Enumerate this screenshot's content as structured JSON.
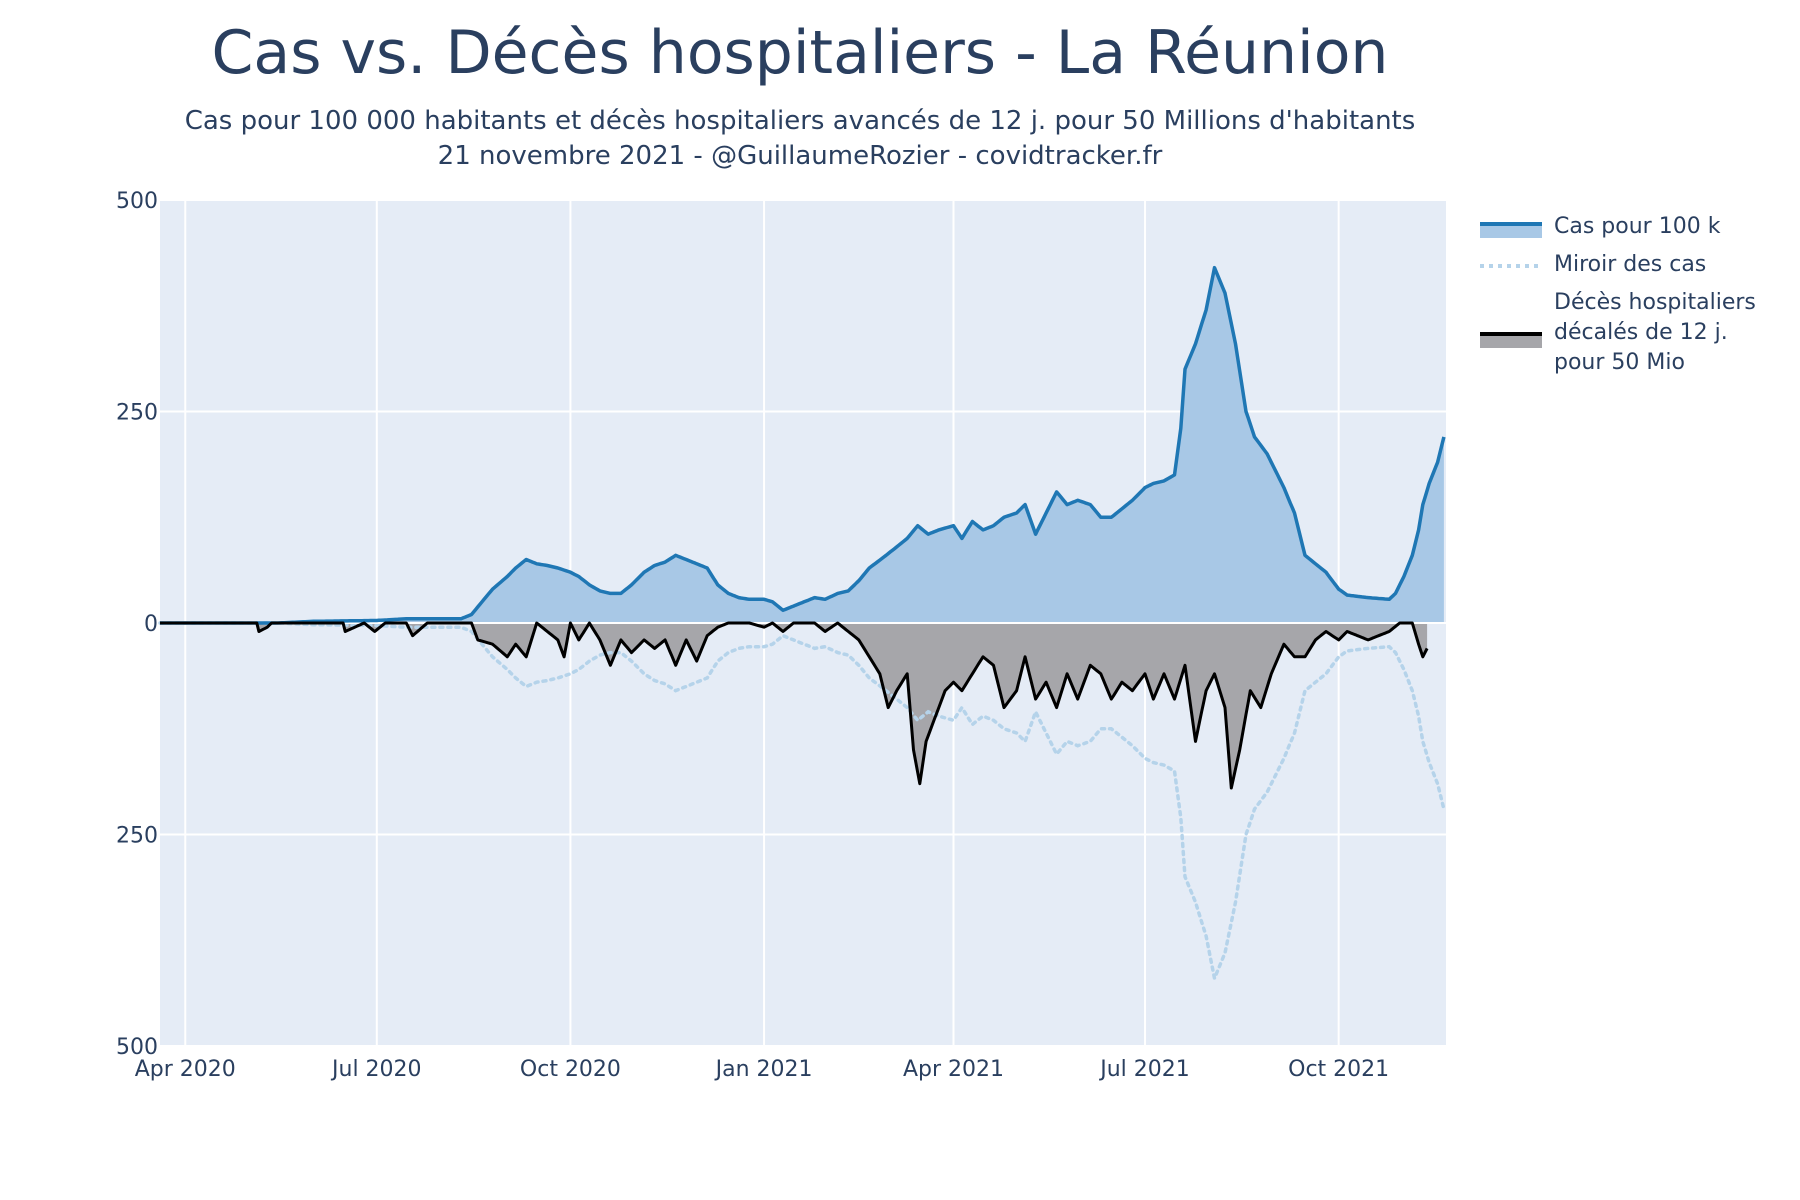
{
  "header": {
    "title": "Cas vs. Décès hospitaliers - La Réunion",
    "subtitle_line1": "Cas pour 100 000 habitants et décès hospitaliers avancés de 12 j. pour 50 Millions d'habitants",
    "subtitle_line2": "21 novembre 2021 - @GuillaumeRozier - covidtracker.fr"
  },
  "colors": {
    "cases_line": "#1f77b4",
    "cases_fill": "#a8c8e6",
    "mirror_line": "#b5d3ea",
    "deaths_line": "#000000",
    "deaths_fill": "#a6a6aa",
    "plot_bg": "#e5ecf6",
    "grid": "#ffffff"
  },
  "chart_data": {
    "type": "area",
    "title": "Cas vs. Décès hospitaliers - La Réunion",
    "x_range": [
      "2020-03-20",
      "2021-11-21"
    ],
    "ylim": [
      -500,
      500
    ],
    "grid": true,
    "legend_position": "top-right",
    "x_tick_labels": [
      {
        "date": "2020-04-01",
        "label": "Apr 2020"
      },
      {
        "date": "2020-07-01",
        "label": "Jul 2020"
      },
      {
        "date": "2020-10-01",
        "label": "Oct 2020"
      },
      {
        "date": "2021-01-01",
        "label": "Jan 2021"
      },
      {
        "date": "2021-04-01",
        "label": "Apr 2021"
      },
      {
        "date": "2021-07-01",
        "label": "Jul 2021"
      },
      {
        "date": "2021-10-01",
        "label": "Oct 2021"
      }
    ],
    "y_tick_labels": [
      {
        "value": 500,
        "label": "500"
      },
      {
        "value": 250,
        "label": "250"
      },
      {
        "value": 0,
        "label": "0"
      },
      {
        "value": -250,
        "label": "250"
      },
      {
        "value": -500,
        "label": "500"
      }
    ],
    "series": [
      {
        "name": "Cas pour 100 k",
        "style": "solid-fill",
        "points": [
          [
            "2020-03-20",
            0
          ],
          [
            "2020-05-15",
            0
          ],
          [
            "2020-06-01",
            2
          ],
          [
            "2020-07-01",
            3
          ],
          [
            "2020-07-15",
            5
          ],
          [
            "2020-08-10",
            5
          ],
          [
            "2020-08-15",
            10
          ],
          [
            "2020-08-20",
            25
          ],
          [
            "2020-08-25",
            40
          ],
          [
            "2020-09-01",
            55
          ],
          [
            "2020-09-05",
            65
          ],
          [
            "2020-09-10",
            75
          ],
          [
            "2020-09-15",
            70
          ],
          [
            "2020-09-20",
            68
          ],
          [
            "2020-09-25",
            65
          ],
          [
            "2020-10-01",
            60
          ],
          [
            "2020-10-05",
            55
          ],
          [
            "2020-10-10",
            45
          ],
          [
            "2020-10-15",
            38
          ],
          [
            "2020-10-20",
            35
          ],
          [
            "2020-10-25",
            35
          ],
          [
            "2020-10-30",
            45
          ],
          [
            "2020-11-05",
            60
          ],
          [
            "2020-11-10",
            68
          ],
          [
            "2020-11-15",
            72
          ],
          [
            "2020-11-20",
            80
          ],
          [
            "2020-11-25",
            75
          ],
          [
            "2020-11-30",
            70
          ],
          [
            "2020-12-05",
            65
          ],
          [
            "2020-12-10",
            45
          ],
          [
            "2020-12-15",
            35
          ],
          [
            "2020-12-20",
            30
          ],
          [
            "2020-12-25",
            28
          ],
          [
            "2021-01-01",
            28
          ],
          [
            "2021-01-05",
            25
          ],
          [
            "2021-01-10",
            15
          ],
          [
            "2021-01-15",
            20
          ],
          [
            "2021-01-20",
            25
          ],
          [
            "2021-01-25",
            30
          ],
          [
            "2021-01-30",
            28
          ],
          [
            "2021-02-05",
            35
          ],
          [
            "2021-02-10",
            38
          ],
          [
            "2021-02-15",
            50
          ],
          [
            "2021-02-20",
            65
          ],
          [
            "2021-02-28",
            80
          ],
          [
            "2021-03-05",
            90
          ],
          [
            "2021-03-10",
            100
          ],
          [
            "2021-03-15",
            115
          ],
          [
            "2021-03-20",
            105
          ],
          [
            "2021-03-25",
            110
          ],
          [
            "2021-04-01",
            115
          ],
          [
            "2021-04-05",
            100
          ],
          [
            "2021-04-10",
            120
          ],
          [
            "2021-04-15",
            110
          ],
          [
            "2021-04-20",
            115
          ],
          [
            "2021-04-25",
            125
          ],
          [
            "2021-05-01",
            130
          ],
          [
            "2021-05-05",
            140
          ],
          [
            "2021-05-10",
            105
          ],
          [
            "2021-05-15",
            130
          ],
          [
            "2021-05-20",
            155
          ],
          [
            "2021-05-25",
            140
          ],
          [
            "2021-05-30",
            145
          ],
          [
            "2021-06-05",
            140
          ],
          [
            "2021-06-10",
            125
          ],
          [
            "2021-06-15",
            125
          ],
          [
            "2021-06-20",
            135
          ],
          [
            "2021-06-25",
            145
          ],
          [
            "2021-07-01",
            160
          ],
          [
            "2021-07-05",
            165
          ],
          [
            "2021-07-10",
            168
          ],
          [
            "2021-07-15",
            175
          ],
          [
            "2021-07-18",
            230
          ],
          [
            "2021-07-20",
            300
          ],
          [
            "2021-07-25",
            330
          ],
          [
            "2021-07-30",
            370
          ],
          [
            "2021-08-03",
            420
          ],
          [
            "2021-08-08",
            390
          ],
          [
            "2021-08-13",
            330
          ],
          [
            "2021-08-18",
            250
          ],
          [
            "2021-08-22",
            220
          ],
          [
            "2021-08-28",
            200
          ],
          [
            "2021-09-05",
            160
          ],
          [
            "2021-09-10",
            130
          ],
          [
            "2021-09-15",
            80
          ],
          [
            "2021-09-20",
            70
          ],
          [
            "2021-09-25",
            60
          ],
          [
            "2021-10-01",
            40
          ],
          [
            "2021-10-05",
            33
          ],
          [
            "2021-10-15",
            30
          ],
          [
            "2021-10-25",
            28
          ],
          [
            "2021-10-28",
            35
          ],
          [
            "2021-11-01",
            55
          ],
          [
            "2021-11-05",
            80
          ],
          [
            "2021-11-08",
            110
          ],
          [
            "2021-11-10",
            140
          ],
          [
            "2021-11-13",
            165
          ],
          [
            "2021-11-17",
            190
          ],
          [
            "2021-11-20",
            220
          ]
        ]
      },
      {
        "name": "Miroir des cas",
        "style": "dotted",
        "mirror_of": "Cas pour 100 k"
      },
      {
        "name": "Décès hospitaliers\ndécalés de 12 j.\npour 50 Mio",
        "style": "solid-fill",
        "points": [
          [
            "2020-03-20",
            0
          ],
          [
            "2020-05-05",
            0
          ],
          [
            "2020-05-06",
            -10
          ],
          [
            "2020-05-10",
            -5
          ],
          [
            "2020-05-12",
            0
          ],
          [
            "2020-06-15",
            0
          ],
          [
            "2020-06-16",
            -10
          ],
          [
            "2020-06-25",
            0
          ],
          [
            "2020-06-30",
            -10
          ],
          [
            "2020-07-05",
            0
          ],
          [
            "2020-07-15",
            0
          ],
          [
            "2020-07-18",
            -15
          ],
          [
            "2020-07-25",
            0
          ],
          [
            "2020-08-15",
            0
          ],
          [
            "2020-08-18",
            -20
          ],
          [
            "2020-08-25",
            -25
          ],
          [
            "2020-09-01",
            -40
          ],
          [
            "2020-09-05",
            -25
          ],
          [
            "2020-09-10",
            -40
          ],
          [
            "2020-09-15",
            0
          ],
          [
            "2020-09-20",
            -10
          ],
          [
            "2020-09-25",
            -20
          ],
          [
            "2020-09-28",
            -40
          ],
          [
            "2020-10-01",
            0
          ],
          [
            "2020-10-05",
            -20
          ],
          [
            "2020-10-10",
            0
          ],
          [
            "2020-10-15",
            -20
          ],
          [
            "2020-10-20",
            -50
          ],
          [
            "2020-10-25",
            -20
          ],
          [
            "2020-10-30",
            -35
          ],
          [
            "2020-11-05",
            -20
          ],
          [
            "2020-11-10",
            -30
          ],
          [
            "2020-11-15",
            -20
          ],
          [
            "2020-11-20",
            -50
          ],
          [
            "2020-11-25",
            -20
          ],
          [
            "2020-11-30",
            -45
          ],
          [
            "2020-12-05",
            -15
          ],
          [
            "2020-12-10",
            -5
          ],
          [
            "2020-12-15",
            0
          ],
          [
            "2020-12-25",
            0
          ],
          [
            "2021-01-01",
            -5
          ],
          [
            "2021-01-05",
            0
          ],
          [
            "2021-01-10",
            -10
          ],
          [
            "2021-01-15",
            0
          ],
          [
            "2021-01-25",
            0
          ],
          [
            "2021-01-30",
            -10
          ],
          [
            "2021-02-05",
            0
          ],
          [
            "2021-02-10",
            -10
          ],
          [
            "2021-02-15",
            -20
          ],
          [
            "2021-02-20",
            -40
          ],
          [
            "2021-02-25",
            -60
          ],
          [
            "2021-03-01",
            -100
          ],
          [
            "2021-03-05",
            -80
          ],
          [
            "2021-03-10",
            -60
          ],
          [
            "2021-03-13",
            -150
          ],
          [
            "2021-03-16",
            -190
          ],
          [
            "2021-03-19",
            -140
          ],
          [
            "2021-03-22",
            -120
          ],
          [
            "2021-03-25",
            -100
          ],
          [
            "2021-03-28",
            -80
          ],
          [
            "2021-04-01",
            -70
          ],
          [
            "2021-04-05",
            -80
          ],
          [
            "2021-04-10",
            -60
          ],
          [
            "2021-04-15",
            -40
          ],
          [
            "2021-04-20",
            -50
          ],
          [
            "2021-04-25",
            -100
          ],
          [
            "2021-05-01",
            -80
          ],
          [
            "2021-05-05",
            -40
          ],
          [
            "2021-05-10",
            -90
          ],
          [
            "2021-05-15",
            -70
          ],
          [
            "2021-05-20",
            -100
          ],
          [
            "2021-05-25",
            -60
          ],
          [
            "2021-05-30",
            -90
          ],
          [
            "2021-06-05",
            -50
          ],
          [
            "2021-06-10",
            -60
          ],
          [
            "2021-06-15",
            -90
          ],
          [
            "2021-06-20",
            -70
          ],
          [
            "2021-06-25",
            -80
          ],
          [
            "2021-07-01",
            -60
          ],
          [
            "2021-07-05",
            -90
          ],
          [
            "2021-07-10",
            -60
          ],
          [
            "2021-07-15",
            -90
          ],
          [
            "2021-07-20",
            -50
          ],
          [
            "2021-07-25",
            -140
          ],
          [
            "2021-07-30",
            -80
          ],
          [
            "2021-08-03",
            -60
          ],
          [
            "2021-08-08",
            -100
          ],
          [
            "2021-08-11",
            -195
          ],
          [
            "2021-08-15",
            -150
          ],
          [
            "2021-08-20",
            -80
          ],
          [
            "2021-08-25",
            -100
          ],
          [
            "2021-08-30",
            -60
          ],
          [
            "2021-09-05",
            -25
          ],
          [
            "2021-09-10",
            -40
          ],
          [
            "2021-09-15",
            -40
          ],
          [
            "2021-09-20",
            -20
          ],
          [
            "2021-09-25",
            -10
          ],
          [
            "2021-10-01",
            -20
          ],
          [
            "2021-10-05",
            -10
          ],
          [
            "2021-10-15",
            -20
          ],
          [
            "2021-10-25",
            -10
          ],
          [
            "2021-10-30",
            0
          ],
          [
            "2021-11-05",
            0
          ],
          [
            "2021-11-08",
            -25
          ],
          [
            "2021-11-10",
            -40
          ],
          [
            "2021-11-12",
            -30
          ]
        ]
      }
    ]
  },
  "legend": {
    "items": [
      {
        "label": "Cas pour 100 k"
      },
      {
        "label": "Miroir des cas"
      },
      {
        "label": "Décès hospitaliers\ndécalés de 12 j.\npour 50 Mio"
      }
    ]
  }
}
